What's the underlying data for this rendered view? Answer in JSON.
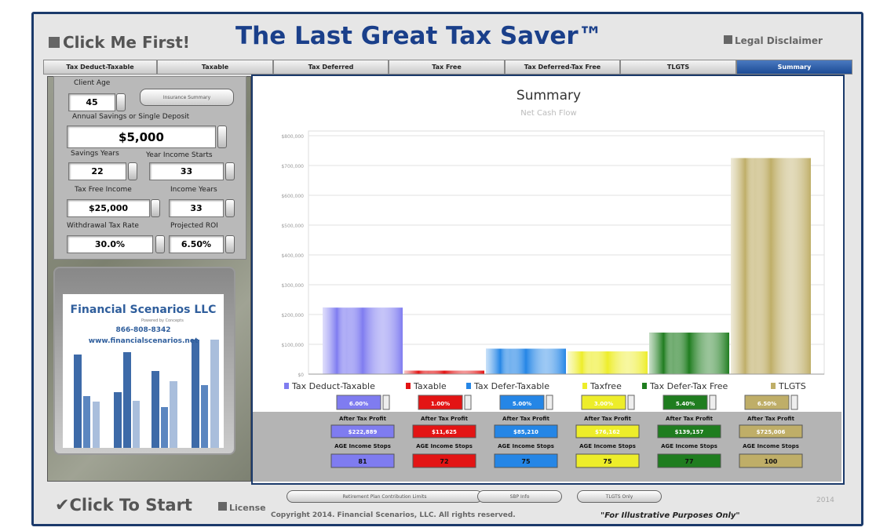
{
  "header": {
    "start_button": "Click Me First!",
    "title": "The Last Great Tax Saver™",
    "disclaimer": "Legal Disclaimer"
  },
  "tabs": [
    "Tax Deduct-Taxable",
    "Taxable",
    "Tax Deferred",
    "Tax Free",
    "Tax Deferred-Tax Free",
    "TLGTS",
    "Summary"
  ],
  "inputs": {
    "insurance_button": "Insurance Summary",
    "fields": [
      {
        "label": "Client Age",
        "value": 45
      },
      {
        "label": "Annual Savings or Single Deposit",
        "value": "$5,000"
      },
      {
        "label": "Savings Years",
        "value": 22
      },
      {
        "label": "Year Income Starts",
        "value": 33
      },
      {
        "label": "Tax Free Income",
        "value": "$25,000"
      },
      {
        "label": "Income Years",
        "value": 33
      },
      {
        "label": "Withdrawal Tax Rate",
        "value": "30.0%"
      },
      {
        "label": "Projected ROI",
        "value": "6.50%"
      }
    ]
  },
  "logo": {
    "name": "Financial Scenarios LLC",
    "tagline": "Powered by Concepts",
    "phone": "866-808-8342",
    "url": "www.financialscenarios.net"
  },
  "chart_data": {
    "type": "bar",
    "title": "Summary",
    "subtitle": "Net Cash Flow",
    "categories": [
      "Tax Deduct-Taxable",
      "Taxable",
      "Tax Defer-Taxable",
      "Taxfree",
      "Tax Defer-Tax Free",
      "TLGTS"
    ],
    "values": [
      222889,
      11625,
      85210,
      76162,
      139157,
      725006
    ],
    "value_labels": [
      "$222,889",
      "$11,625",
      "$85,210",
      "$76,162",
      "$139,157",
      "$725,006"
    ],
    "colors": [
      "#7f7cf0",
      "#e31414",
      "#2586e6",
      "#eded2a",
      "#1f7d1f",
      "#bfae68"
    ],
    "ylim": [
      0,
      800000
    ],
    "yticks": [
      {
        "value": 0,
        "label": "$0"
      },
      {
        "value": 100000,
        "label": "$100,000"
      },
      {
        "value": 200000,
        "label": "$200,000"
      },
      {
        "value": 300000,
        "label": "$300,000"
      },
      {
        "value": 400000,
        "label": "$400,000"
      },
      {
        "value": 500000,
        "label": "$500,000"
      },
      {
        "value": 600000,
        "label": "$600,000"
      },
      {
        "value": 700000,
        "label": "$700,000"
      },
      {
        "value": 800000,
        "label": "$800,000"
      }
    ],
    "grid": true
  },
  "summary": {
    "rates": [
      "6.00%",
      "1.00%",
      "5.00%",
      "3.00%",
      "5.40%",
      "6.50%"
    ],
    "profit_label": "After Tax Profit",
    "age_label": "AGE Income Stops",
    "ages": [
      81,
      72,
      75,
      75,
      77,
      100
    ]
  },
  "footer": {
    "start": "Click To Start",
    "license": "License",
    "buttons": [
      "Retirement Plan Contribution Limits",
      "SBP Info",
      "TLGTS Only"
    ],
    "copyright": "Copyright 2014. Financial Scenarios, LLC. All rights reserved.",
    "note": "\"For Illustrative Purposes Only\"",
    "year": "2014"
  }
}
